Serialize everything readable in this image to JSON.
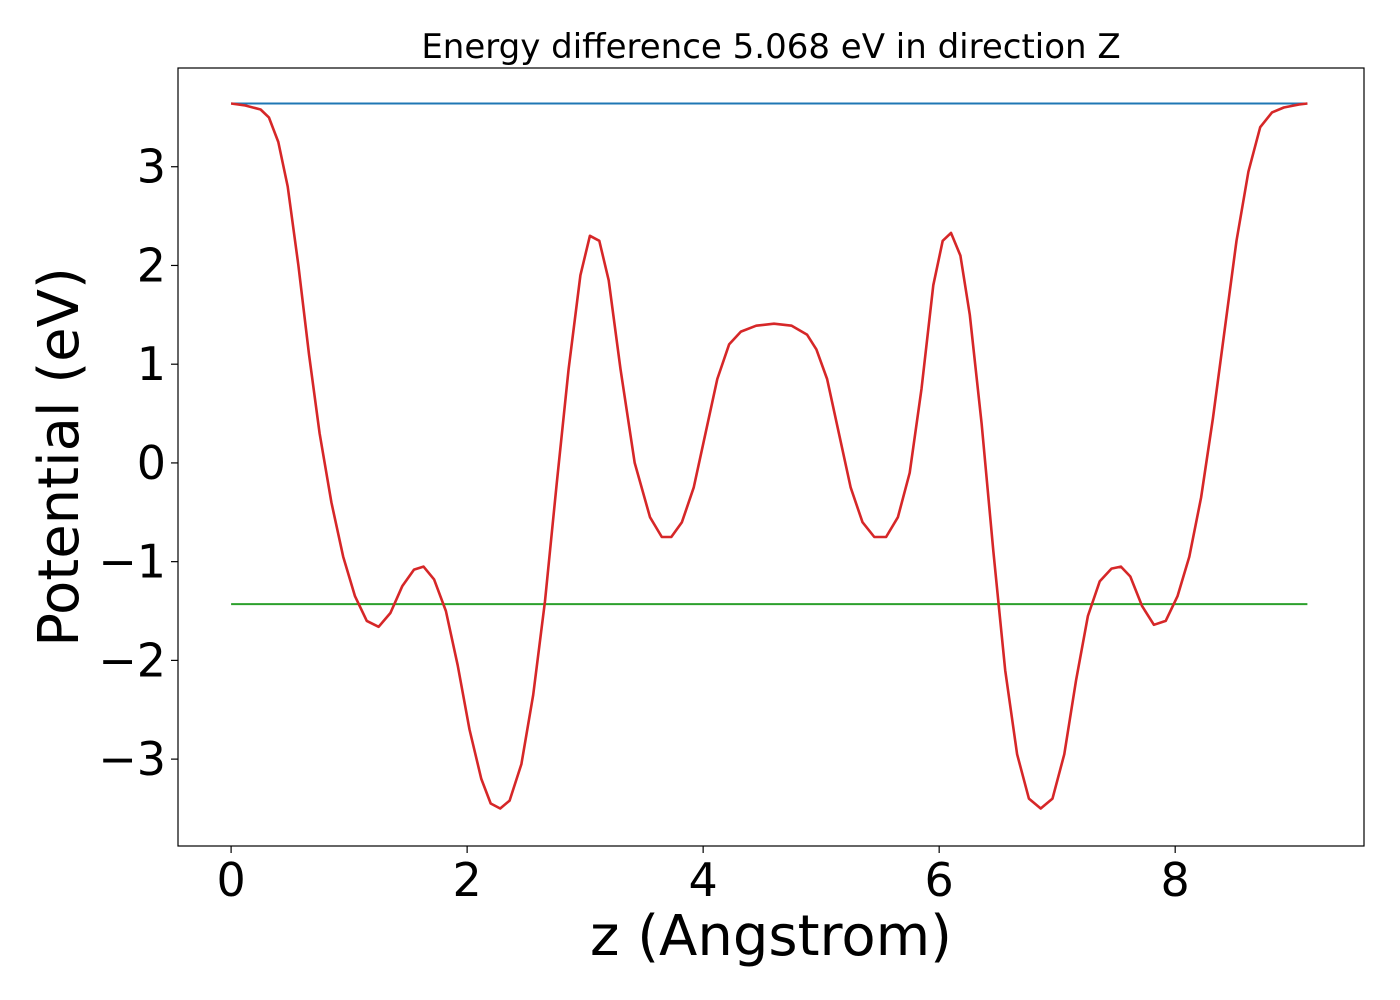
{
  "chart_data": {
    "type": "line",
    "title": "Energy difference 5.068 eV in direction Z",
    "xlabel": "z (Angstrom)",
    "ylabel": "Potential (eV)",
    "xlim": [
      -0.45,
      9.6
    ],
    "ylim": [
      -3.88,
      4.0
    ],
    "xticks": [
      0,
      2,
      4,
      6,
      8
    ],
    "xtick_labels": [
      "0",
      "2",
      "4",
      "6",
      "8"
    ],
    "yticks": [
      3,
      2,
      1,
      0,
      -1,
      -2,
      -3
    ],
    "ytick_labels": [
      "3",
      "2",
      "1",
      "0",
      "−1",
      "−2",
      "−3"
    ],
    "grid": false,
    "series": [
      {
        "color": "#1f77b4",
        "x": [
          0,
          9.12
        ],
        "y": [
          3.64,
          3.64
        ]
      },
      {
        "color": "#2ca02c",
        "x": [
          0,
          9.12
        ],
        "y": [
          -1.43,
          -1.43
        ]
      },
      {
        "color": "#d62728",
        "x": [
          0,
          0.12,
          0.25,
          0.32,
          0.4,
          0.48,
          0.57,
          0.66,
          0.75,
          0.85,
          0.95,
          1.05,
          1.15,
          1.25,
          1.35,
          1.45,
          1.55,
          1.63,
          1.72,
          1.82,
          1.92,
          2.02,
          2.12,
          2.2,
          2.28,
          2.36,
          2.46,
          2.56,
          2.66,
          2.76,
          2.86,
          2.96,
          3.04,
          3.12,
          3.2,
          3.3,
          3.42,
          3.55,
          3.65,
          3.73,
          3.82,
          3.92,
          4.02,
          4.12,
          4.22,
          4.32,
          4.45,
          4.6,
          4.75,
          4.88,
          4.96,
          5.05,
          5.15,
          5.25,
          5.35,
          5.45,
          5.55,
          5.65,
          5.75,
          5.85,
          5.95,
          6.03,
          6.1,
          6.18,
          6.26,
          6.36,
          6.46,
          6.56,
          6.66,
          6.76,
          6.86,
          6.96,
          7.06,
          7.16,
          7.26,
          7.36,
          7.46,
          7.54,
          7.62,
          7.72,
          7.82,
          7.92,
          8.02,
          8.12,
          8.22,
          8.32,
          8.42,
          8.52,
          8.62,
          8.72,
          8.82,
          8.92,
          9.05,
          9.12
        ],
        "y": [
          3.64,
          3.62,
          3.58,
          3.5,
          3.25,
          2.8,
          2.0,
          1.1,
          0.3,
          -0.4,
          -0.95,
          -1.35,
          -1.6,
          -1.66,
          -1.52,
          -1.25,
          -1.08,
          -1.05,
          -1.18,
          -1.5,
          -2.05,
          -2.7,
          -3.2,
          -3.45,
          -3.5,
          -3.42,
          -3.05,
          -2.35,
          -1.4,
          -0.2,
          0.95,
          1.9,
          2.3,
          2.25,
          1.85,
          0.95,
          0.0,
          -0.55,
          -0.75,
          -0.75,
          -0.6,
          -0.25,
          0.3,
          0.85,
          1.2,
          1.33,
          1.39,
          1.41,
          1.39,
          1.3,
          1.15,
          0.85,
          0.3,
          -0.25,
          -0.6,
          -0.75,
          -0.75,
          -0.55,
          -0.1,
          0.75,
          1.8,
          2.25,
          2.33,
          2.1,
          1.5,
          0.4,
          -0.9,
          -2.1,
          -2.95,
          -3.4,
          -3.5,
          -3.4,
          -2.95,
          -2.2,
          -1.55,
          -1.2,
          -1.07,
          -1.05,
          -1.15,
          -1.45,
          -1.64,
          -1.6,
          -1.35,
          -0.95,
          -0.35,
          0.45,
          1.35,
          2.25,
          2.95,
          3.4,
          3.55,
          3.6,
          3.63,
          3.64
        ]
      }
    ]
  }
}
